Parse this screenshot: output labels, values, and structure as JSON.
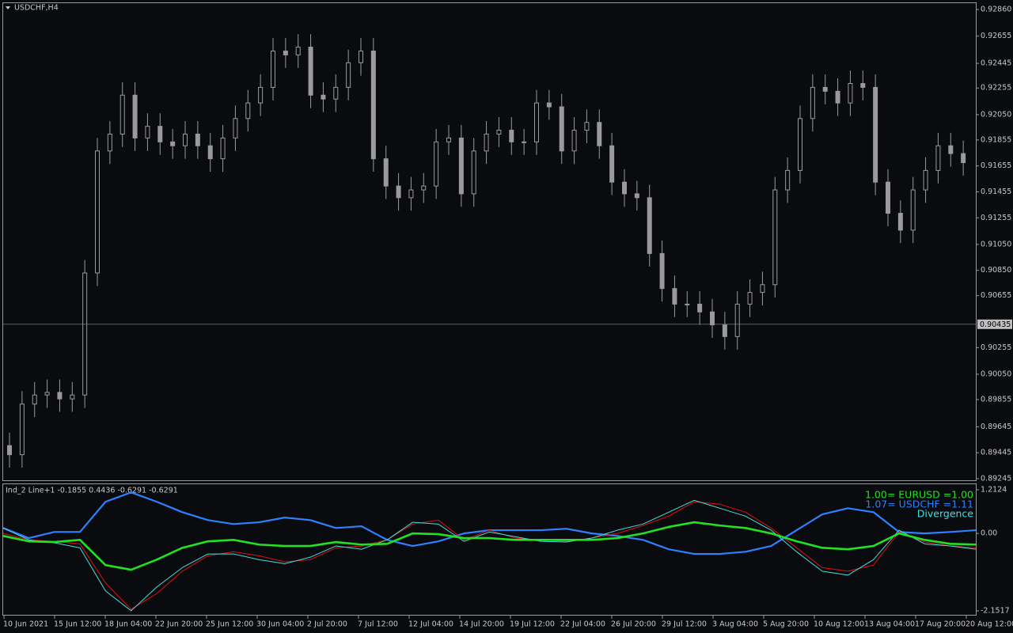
{
  "chart_data": [
    {
      "type": "candlestick",
      "title": "USDCHF,H4",
      "color": "#9a9a9a",
      "open": [
        0.895,
        0.8943,
        0.8982,
        0.8989,
        0.8991,
        0.8986,
        0.8989,
        0.9083,
        0.9177,
        0.919,
        0.922,
        0.9187,
        0.9196,
        0.9184,
        0.9181,
        0.919,
        0.9181,
        0.9171,
        0.9187,
        0.9202,
        0.9214,
        0.9226,
        0.9254,
        0.9251,
        0.9257,
        0.922,
        0.9217,
        0.9226,
        0.9245,
        0.9254,
        0.9171,
        0.915,
        0.9141,
        0.9147,
        0.915,
        0.9184,
        0.9187,
        0.9144,
        0.9177,
        0.919,
        0.9193,
        0.9184,
        0.9184,
        0.9214,
        0.9211,
        0.9177,
        0.9193,
        0.9199,
        0.9181,
        0.9153,
        0.9144,
        0.9141,
        0.9098,
        0.9071,
        0.9059,
        0.9059,
        0.9053,
        0.9043,
        0.9034,
        0.9059,
        0.9068,
        0.9074,
        0.9147,
        0.9162,
        0.9202,
        0.9226,
        0.9223,
        0.9214,
        0.9229,
        0.9226,
        0.9153,
        0.9129,
        0.9116,
        0.9147,
        0.9162,
        0.9181,
        0.9175
      ],
      "high": [
        0.896,
        0.8992,
        0.8999,
        0.9001,
        0.9001,
        0.8999,
        0.9093,
        0.9187,
        0.92,
        0.923,
        0.923,
        0.9206,
        0.9206,
        0.9194,
        0.92,
        0.92,
        0.9191,
        0.9197,
        0.9212,
        0.9224,
        0.9236,
        0.9264,
        0.9264,
        0.9267,
        0.9267,
        0.923,
        0.9236,
        0.9255,
        0.9264,
        0.9264,
        0.9181,
        0.916,
        0.9157,
        0.916,
        0.9194,
        0.9197,
        0.9197,
        0.9187,
        0.92,
        0.9203,
        0.9203,
        0.9194,
        0.9224,
        0.9224,
        0.9221,
        0.9203,
        0.9209,
        0.9209,
        0.9191,
        0.9163,
        0.9154,
        0.9151,
        0.9108,
        0.9081,
        0.9069,
        0.9069,
        0.9063,
        0.9053,
        0.9069,
        0.9078,
        0.9084,
        0.9157,
        0.9172,
        0.9212,
        0.9236,
        0.9236,
        0.9233,
        0.9239,
        0.9239,
        0.9236,
        0.9163,
        0.9139,
        0.9157,
        0.9172,
        0.9191,
        0.9191,
        0.9185
      ],
      "low": [
        0.8933,
        0.8933,
        0.8972,
        0.8979,
        0.8976,
        0.8976,
        0.8979,
        0.9073,
        0.9167,
        0.918,
        0.9177,
        0.9177,
        0.9174,
        0.9171,
        0.9171,
        0.9171,
        0.9161,
        0.9161,
        0.9177,
        0.9192,
        0.9204,
        0.9216,
        0.9241,
        0.9241,
        0.921,
        0.9207,
        0.9207,
        0.9216,
        0.9235,
        0.9161,
        0.914,
        0.9131,
        0.9131,
        0.9137,
        0.914,
        0.9174,
        0.9134,
        0.9134,
        0.9167,
        0.918,
        0.9174,
        0.9174,
        0.9174,
        0.9201,
        0.9167,
        0.9167,
        0.9183,
        0.9171,
        0.9143,
        0.9134,
        0.9131,
        0.9088,
        0.9061,
        0.9049,
        0.9049,
        0.9043,
        0.9033,
        0.9024,
        0.9024,
        0.9049,
        0.9058,
        0.9064,
        0.9137,
        0.9152,
        0.9192,
        0.9213,
        0.9204,
        0.9204,
        0.9216,
        0.9143,
        0.9119,
        0.9106,
        0.9106,
        0.9137,
        0.9152,
        0.9165,
        0.9158
      ],
      "close": [
        0.8943,
        0.8982,
        0.8989,
        0.8991,
        0.8986,
        0.8989,
        0.9083,
        0.9177,
        0.919,
        0.922,
        0.9187,
        0.9196,
        0.9184,
        0.9181,
        0.919,
        0.9181,
        0.9171,
        0.9187,
        0.9202,
        0.9214,
        0.9226,
        0.9254,
        0.9251,
        0.9257,
        0.922,
        0.9217,
        0.9226,
        0.9245,
        0.9254,
        0.9171,
        0.915,
        0.9141,
        0.9147,
        0.915,
        0.9184,
        0.9187,
        0.9144,
        0.9177,
        0.919,
        0.9193,
        0.9184,
        0.9184,
        0.9214,
        0.9211,
        0.9177,
        0.9193,
        0.9199,
        0.9181,
        0.9153,
        0.9144,
        0.9141,
        0.9098,
        0.9071,
        0.9059,
        0.9059,
        0.9053,
        0.9043,
        0.9034,
        0.9059,
        0.9068,
        0.9074,
        0.9147,
        0.9162,
        0.9202,
        0.9226,
        0.9223,
        0.9214,
        0.9229,
        0.9226,
        0.9153,
        0.9129,
        0.9116,
        0.9147,
        0.9162,
        0.9181,
        0.9175,
        0.9168
      ],
      "ylim": [
        0.89245,
        0.9286
      ],
      "yticks": [
        {
          "value": 0.9286,
          "label": "0.92860"
        },
        {
          "value": 0.92655,
          "label": "0.92655"
        },
        {
          "value": 0.92445,
          "label": "0.92445"
        },
        {
          "value": 0.92255,
          "label": "0.92255"
        },
        {
          "value": 0.9205,
          "label": "0.92050"
        },
        {
          "value": 0.91855,
          "label": "0.91855"
        },
        {
          "value": 0.91655,
          "label": "0.91655"
        },
        {
          "value": 0.91455,
          "label": "0.91455"
        },
        {
          "value": 0.91255,
          "label": "0.91255"
        },
        {
          "value": 0.9105,
          "label": "0.91050"
        },
        {
          "value": 0.9085,
          "label": "0.90850"
        },
        {
          "value": 0.90655,
          "label": "0.90655"
        },
        {
          "value": 0.90255,
          "label": "0.90255"
        },
        {
          "value": 0.9005,
          "label": "0.90050"
        },
        {
          "value": 0.89855,
          "label": "0.89855"
        },
        {
          "value": 0.89645,
          "label": "0.89645"
        },
        {
          "value": 0.89445,
          "label": "0.89445"
        },
        {
          "value": 0.89245,
          "label": "0.89245"
        }
      ],
      "price_line": {
        "value": 0.90435,
        "label": "0.90435"
      }
    },
    {
      "type": "line",
      "title": "Ind_2 Line+1 -0.1855 0.4436 -0.6291 -0.6291",
      "series": [
        {
          "name": "1.07= USDCHF =1.11",
          "color": "#2f80ff",
          "width": 2.2,
          "values": [
            0.15,
            -0.13,
            0.04,
            0.04,
            0.88,
            1.14,
            0.88,
            0.59,
            0.37,
            0.26,
            0.31,
            0.44,
            0.37,
            0.15,
            0.2,
            -0.18,
            -0.35,
            -0.22,
            0.0,
            0.09,
            0.09,
            0.09,
            0.13,
            0.0,
            -0.07,
            -0.18,
            -0.44,
            -0.57,
            -0.57,
            -0.51,
            -0.35,
            0.09,
            0.53,
            0.7,
            0.59,
            0.04,
            0.0,
            0.04,
            0.09
          ]
        },
        {
          "color": "#e01010",
          "width": 1,
          "values": [
            0.0,
            -0.18,
            -0.22,
            -0.29,
            -1.38,
            -2.11,
            -1.67,
            -1.05,
            -0.62,
            -0.51,
            -0.62,
            -0.79,
            -0.73,
            -0.4,
            -0.35,
            -0.18,
            0.26,
            0.37,
            -0.18,
            0.09,
            -0.13,
            -0.18,
            -0.22,
            -0.13,
            0.0,
            0.22,
            0.48,
            0.88,
            0.81,
            0.59,
            0.15,
            -0.4,
            -0.95,
            -1.05,
            -0.88,
            0.04,
            -0.24,
            -0.35,
            -0.4
          ]
        },
        {
          "name": "Divergence",
          "color": "#40e0e0",
          "width": 1,
          "values": [
            0.15,
            -0.18,
            -0.26,
            -0.4,
            -1.6,
            -2.15,
            -1.49,
            -0.95,
            -0.57,
            -0.57,
            -0.73,
            -0.84,
            -0.66,
            -0.35,
            -0.44,
            -0.18,
            0.31,
            0.26,
            -0.22,
            0.04,
            -0.09,
            -0.22,
            -0.24,
            -0.13,
            0.09,
            0.26,
            0.59,
            0.92,
            0.7,
            0.48,
            0.09,
            -0.51,
            -1.05,
            -1.16,
            -0.73,
            0.09,
            -0.29,
            -0.35,
            -0.44
          ]
        },
        {
          "name": "1.00= EURUSD =1.00",
          "color": "#22e022",
          "width": 2.6,
          "values": [
            -0.07,
            -0.22,
            -0.24,
            -0.18,
            -0.88,
            -1.01,
            -0.73,
            -0.4,
            -0.22,
            -0.18,
            -0.31,
            -0.35,
            -0.35,
            -0.24,
            -0.31,
            -0.29,
            0.0,
            -0.02,
            -0.13,
            -0.13,
            -0.18,
            -0.18,
            -0.18,
            -0.18,
            -0.13,
            0.0,
            0.18,
            0.31,
            0.22,
            0.15,
            0.0,
            -0.22,
            -0.4,
            -0.44,
            -0.35,
            0.0,
            -0.18,
            -0.29,
            -0.31
          ]
        }
      ],
      "legend_order": [
        3,
        0,
        2
      ],
      "ylim": [
        -2.1517,
        1.2124
      ],
      "yticks": [
        1.2124,
        {
          "value": 0,
          "label": "0.00"
        },
        -2.1517
      ],
      "x_labels": [
        "10 Jun 2021",
        "15 Jun 12:00",
        "18 Jun 04:00",
        "22 Jun 20:00",
        "25 Jun 12:00",
        "30 Jun 04:00",
        "2 Jul 20:00",
        "7 Jul 12:00",
        "12 Jul 04:00",
        "14 Jul 20:00",
        "19 Jul 12:00",
        "22 Jul 04:00",
        "26 Jul 20:00",
        "29 Jul 12:00",
        "3 Aug 04:00",
        "5 Aug 20:00",
        "10 Aug 12:00",
        "13 Aug 04:00",
        "17 Aug 20:00",
        "20 Aug 12:00"
      ]
    }
  ]
}
